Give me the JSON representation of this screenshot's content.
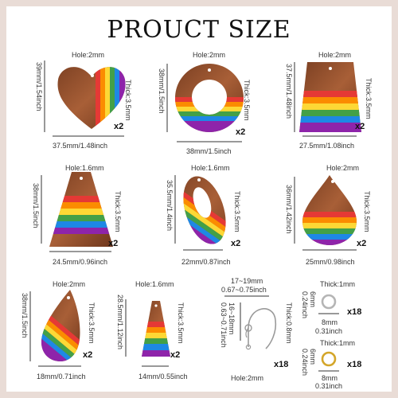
{
  "title": "PROUCT SIZE",
  "colors": {
    "border": "#e9dcd6",
    "wood": "#8a4a2b",
    "wood_light": "#a85f37",
    "rainbow": [
      "#e53935",
      "#fb8c00",
      "#fdd835",
      "#43a047",
      "#1e88e5",
      "#8e24aa"
    ]
  },
  "items": [
    {
      "name": "heart",
      "hole": "Hole:2mm",
      "height": "39mm/1.54inch",
      "thick": "Thick:3.5mm",
      "width": "37.5mm/1.48inch",
      "qty": "x2"
    },
    {
      "name": "ring",
      "hole": "Hole:2mm",
      "height": "38mm/1.5inch",
      "thick": "Thick:3.5mm",
      "width": "38mm/1.5inch",
      "qty": "x2"
    },
    {
      "name": "trapezoid",
      "hole": "Hole:2mm",
      "height": "37.5mm/1.48inch",
      "thick": "Thick:3.5mm",
      "width": "27.5mm/1.08inch",
      "qty": "x2"
    },
    {
      "name": "triangle",
      "hole": "Hole:1.6mm",
      "height": "38mm/1.5inch",
      "thick": "Thick:3.5mm",
      "width": "24.5mm/0.96inch",
      "qty": "x2"
    },
    {
      "name": "oval",
      "hole": "Hole:1.6mm",
      "height": "35.5mm/1.4inch",
      "thick": "Thick:3.5mm",
      "width": "22mm/0.87inch",
      "qty": "x2"
    },
    {
      "name": "teardrop",
      "hole": "Hole:2mm",
      "height": "36mm/1.42inch",
      "thick": "Thick:3.5mm",
      "width": "25mm/0.98inch",
      "qty": "x2"
    },
    {
      "name": "small-teardrop",
      "hole": "Hole:2mm",
      "height": "38mm/1.5inch",
      "thick": "Thick:3.5mm",
      "width": "18mm/0.71inch",
      "qty": "x2"
    },
    {
      "name": "small-triangle",
      "hole": "Hole:1.6mm",
      "height": "28.5mm/1.12inch",
      "thick": "Thick:3.5mm",
      "width": "14mm/0.55inch",
      "qty": "x2"
    }
  ],
  "hook": {
    "width_mm": "17~19mm",
    "width_inch": "0.67~0.75inch",
    "height_mm": "16~18mm",
    "height_inch": "0.63~0.71inch",
    "thick": "Thick:0.8mm",
    "hole": "Hole:2mm",
    "qty": "x18"
  },
  "jump_ring_silver": {
    "thick": "Thick:1mm",
    "inner": "6mm",
    "inner_inch": "0.24inch",
    "outer": "8mm",
    "outer_inch": "0.31inch",
    "qty": "x18"
  },
  "jump_ring_gold": {
    "thick": "Thick:1mm",
    "inner": "6mm",
    "inner_inch": "0.24inch",
    "outer": "8mm",
    "outer_inch": "0.31inch",
    "qty": "x18"
  }
}
